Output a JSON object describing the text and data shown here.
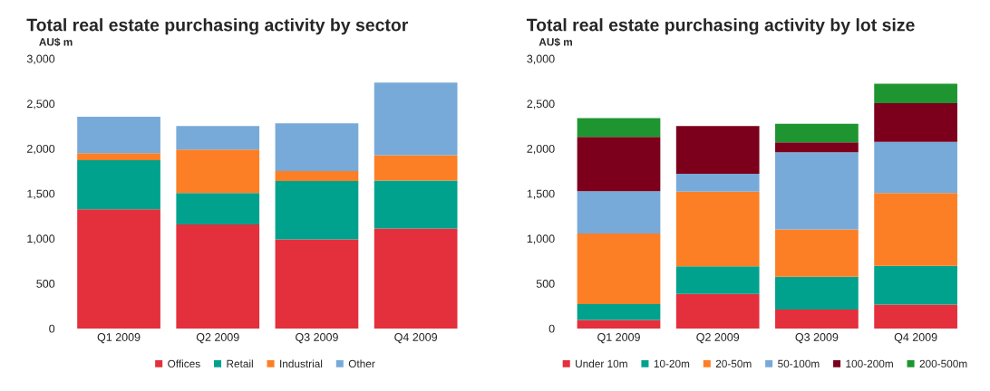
{
  "chart_data": [
    {
      "type": "bar",
      "title": "Total real estate purchasing activity by sector",
      "ylabel": "AU$ m",
      "categories": [
        "Q1 2009",
        "Q2 2009",
        "Q3 2009",
        "Q4 2009"
      ],
      "stacked": true,
      "ylim": [
        0,
        3000
      ],
      "yticks": [
        0,
        {
          "value": 500,
          "label": "500"
        },
        {
          "value": 1000,
          "label": "1,000"
        },
        {
          "value": 1500,
          "label": "1,500"
        },
        {
          "value": 2000,
          "label": "2,000"
        },
        {
          "value": 2500,
          "label": "2,500"
        },
        {
          "value": 3000,
          "label": "3,000"
        }
      ],
      "grid": false,
      "legend": "bottom",
      "series": [
        {
          "name": "Offices",
          "color": "#e3303c",
          "values": [
            1325,
            1155,
            990,
            1110
          ]
        },
        {
          "name": "Retail",
          "color": "#00a28d",
          "values": [
            545,
            350,
            650,
            535
          ]
        },
        {
          "name": "Industrial",
          "color": "#fd7f25",
          "values": [
            80,
            485,
            110,
            280
          ]
        },
        {
          "name": "Other",
          "color": "#77aad9",
          "values": [
            405,
            260,
            530,
            810
          ]
        }
      ]
    },
    {
      "type": "bar",
      "title": "Total real estate purchasing activity by lot size",
      "ylabel": "AU$ m",
      "categories": [
        "Q1 2009",
        "Q2 2009",
        "Q3 2009",
        "Q4 2009"
      ],
      "stacked": true,
      "ylim": [
        0,
        3000
      ],
      "yticks": [
        0,
        {
          "value": 500,
          "label": "500"
        },
        {
          "value": 1000,
          "label": "1,000"
        },
        {
          "value": 1500,
          "label": "1,500"
        },
        {
          "value": 2000,
          "label": "2,000"
        },
        {
          "value": 2500,
          "label": "2,500"
        },
        {
          "value": 3000,
          "label": "3,000"
        }
      ],
      "grid": false,
      "legend": "bottom",
      "series": [
        {
          "name": "Under 10m",
          "color": "#e3303c",
          "values": [
            95,
            385,
            210,
            265
          ]
        },
        {
          "name": "10-20m",
          "color": "#00a28d",
          "values": [
            175,
            305,
            365,
            430
          ]
        },
        {
          "name": "20-50m",
          "color": "#fd7f25",
          "values": [
            785,
            830,
            525,
            810
          ]
        },
        {
          "name": "50-100m",
          "color": "#77aad9",
          "values": [
            470,
            200,
            860,
            570
          ]
        },
        {
          "name": "100-200m",
          "color": "#7c001c",
          "values": [
            605,
            530,
            110,
            430
          ]
        },
        {
          "name": "200-500m",
          "color": "#1e9530",
          "values": [
            210,
            0,
            205,
            215
          ]
        }
      ]
    }
  ]
}
